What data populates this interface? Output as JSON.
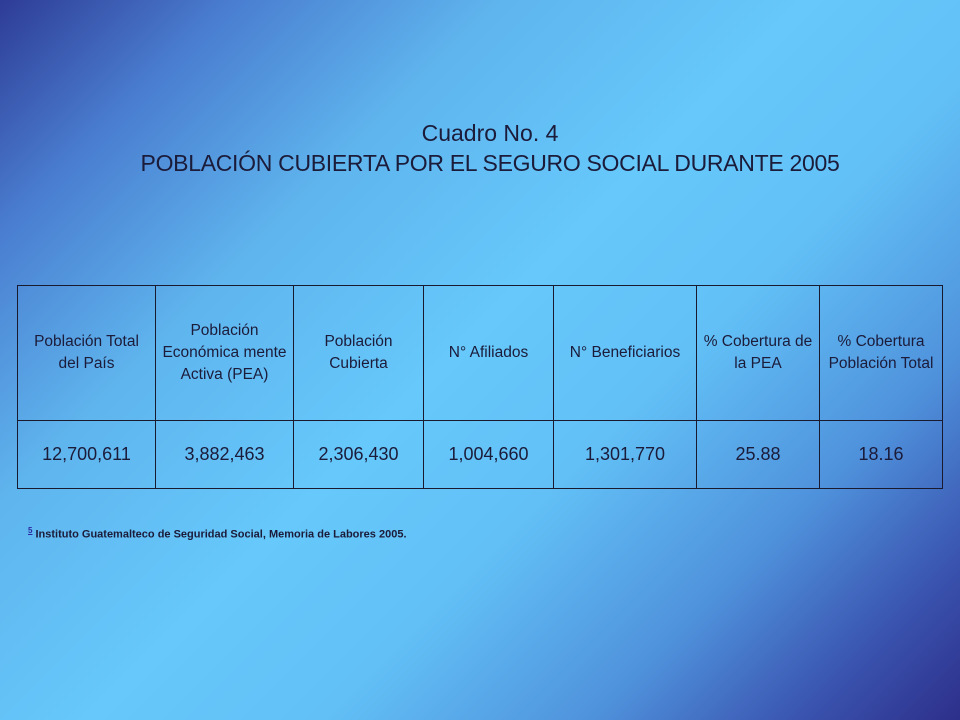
{
  "title": {
    "line1": "Cuadro No. 4",
    "line2": "POBLACIÓN CUBIERTA POR EL SEGURO SOCIAL DURANTE 2005"
  },
  "table": {
    "headers": [
      "Población Total del País",
      "Población Económica mente Activa (PEA)",
      "Población Cubierta",
      "N° Afiliados",
      "N° Beneficiarios",
      "% Cobertura de la PEA",
      "% Cobertura Población Total"
    ],
    "row": [
      "12,700,611",
      "3,882,463",
      "2,306,430",
      "1,004,660",
      "1,301,770",
      "25.88",
      "18.16"
    ]
  },
  "footnote": {
    "mark": "5",
    "text": "Instituto Guatemalteco de Seguridad Social, Memoria de Labores 2005."
  }
}
